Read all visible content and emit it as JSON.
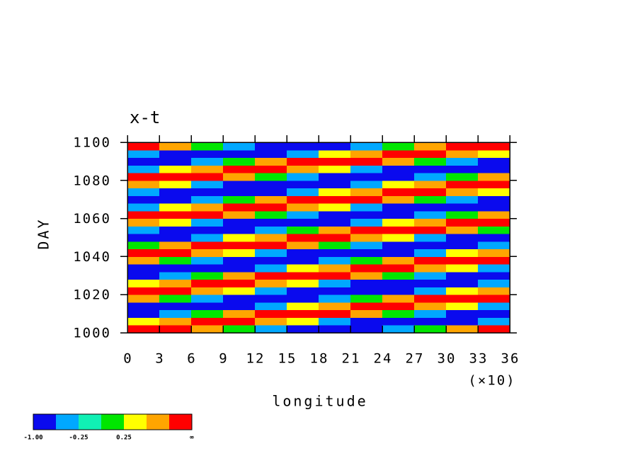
{
  "chart_data": {
    "type": "contour",
    "title": "x-t",
    "xlabel": "longitude",
    "xlabel_multiplier": "(×10)",
    "ylabel": "DAY",
    "x": [
      15,
      45,
      75,
      105,
      135,
      165,
      195,
      225,
      255,
      285,
      315,
      345
    ],
    "y": [
      1002,
      1006,
      1010,
      1014,
      1018,
      1022,
      1026,
      1030,
      1034,
      1038,
      1042,
      1046,
      1050,
      1054,
      1058,
      1062,
      1066,
      1070,
      1074,
      1078,
      1082,
      1086,
      1090,
      1094,
      1098
    ],
    "z": [
      [
        1,
        0.87,
        0.5,
        0,
        -0.5,
        -0.87,
        -1,
        -0.87,
        -0.5,
        0,
        0.5,
        0.87
      ],
      [
        0.26,
        0.71,
        0.97,
        0.97,
        0.71,
        0.26,
        -0.26,
        -0.71,
        -0.97,
        -0.97,
        -0.71,
        -0.26
      ],
      [
        -0.87,
        -0.5,
        0,
        0.5,
        0.87,
        1,
        0.87,
        0.5,
        0,
        -0.5,
        -0.87,
        -1
      ],
      [
        -0.71,
        -0.97,
        -0.97,
        -0.71,
        -0.26,
        0.26,
        0.71,
        0.97,
        0.97,
        0.71,
        0.26,
        -0.26
      ],
      [
        0.5,
        0,
        -0.5,
        -0.87,
        -1,
        -0.87,
        -0.5,
        0,
        0.5,
        0.87,
        1,
        0.87
      ],
      [
        0.97,
        0.97,
        0.71,
        0.26,
        -0.26,
        -0.71,
        -0.97,
        -0.97,
        -0.71,
        -0.26,
        0.26,
        0.71
      ],
      [
        0.26,
        0.71,
        0.97,
        0.97,
        0.71,
        0.26,
        -0.26,
        -0.71,
        -0.97,
        -0.97,
        -0.71,
        -0.26
      ],
      [
        -0.87,
        -0.5,
        0,
        0.5,
        0.87,
        1,
        0.87,
        0.5,
        0,
        -0.5,
        -0.87,
        -1
      ],
      [
        -0.71,
        -0.97,
        -0.97,
        -0.71,
        -0.26,
        0.26,
        0.71,
        0.97,
        0.97,
        0.71,
        0.26,
        -0.26
      ],
      [
        0.5,
        0,
        -0.5,
        -0.87,
        -1,
        -0.87,
        -0.5,
        0,
        0.5,
        0.87,
        1,
        0.87
      ],
      [
        0.97,
        0.97,
        0.71,
        0.26,
        -0.26,
        -0.71,
        -0.97,
        -0.97,
        -0.71,
        -0.26,
        0.26,
        0.71
      ],
      [
        0,
        0.5,
        0.87,
        1,
        0.87,
        0.5,
        0,
        -0.5,
        -0.87,
        -1,
        -0.87,
        -0.5
      ],
      [
        -0.97,
        -0.71,
        -0.26,
        0.26,
        0.71,
        0.97,
        0.97,
        0.71,
        0.26,
        -0.26,
        -0.71,
        -0.97
      ],
      [
        -0.5,
        -0.87,
        -1,
        -0.87,
        -0.5,
        0,
        0.5,
        0.87,
        1,
        0.87,
        0.5,
        0
      ],
      [
        0.71,
        0.26,
        -0.26,
        -0.71,
        -0.97,
        -0.97,
        -0.71,
        -0.26,
        0.26,
        0.71,
        0.97,
        0.97
      ],
      [
        0.87,
        1,
        0.87,
        0.5,
        0,
        -0.5,
        -0.87,
        -1,
        -0.87,
        -0.5,
        0,
        0.5
      ],
      [
        -0.26,
        0.26,
        0.71,
        0.97,
        0.97,
        0.71,
        0.26,
        -0.26,
        -0.71,
        -0.97,
        -0.97,
        -0.71
      ],
      [
        -1,
        -0.87,
        -0.5,
        0,
        0.5,
        0.87,
        1,
        0.87,
        0.5,
        0,
        -0.5,
        -0.87
      ],
      [
        -0.26,
        -0.71,
        -0.97,
        -0.97,
        -0.71,
        -0.26,
        0.26,
        0.71,
        0.97,
        0.97,
        0.71,
        0.26
      ],
      [
        0.71,
        0.26,
        -0.26,
        -0.71,
        -0.97,
        -0.97,
        -0.71,
        -0.26,
        0.26,
        0.71,
        0.97,
        0.97
      ],
      [
        0.87,
        1,
        0.87,
        0.5,
        0,
        -0.5,
        -0.87,
        -1,
        -0.87,
        -0.5,
        0,
        0.5
      ],
      [
        -0.26,
        0.26,
        0.71,
        0.97,
        0.97,
        0.71,
        0.26,
        -0.26,
        -0.71,
        -0.97,
        -0.97,
        -0.71
      ],
      [
        -1,
        -0.87,
        -0.5,
        0,
        0.5,
        0.87,
        1,
        0.87,
        0.5,
        0,
        -0.5,
        -0.87
      ],
      [
        -0.26,
        -0.71,
        -0.97,
        -0.97,
        -0.71,
        -0.26,
        0.26,
        0.71,
        0.97,
        0.97,
        0.71,
        0.26
      ],
      [
        0.87,
        0.5,
        0,
        -0.5,
        -0.87,
        -1,
        -0.87,
        -0.5,
        0,
        0.5,
        0.87,
        1
      ]
    ],
    "levels": [
      -1,
      -0.5,
      -0.25,
      0,
      0.25,
      0.5,
      0.75
    ],
    "colors": [
      "#0a0aee",
      "#00a8ff",
      "#10f0b4",
      "#00e600",
      "#ffff00",
      "#ffa500",
      "#ff0000"
    ],
    "colorbar_ticks": [
      {
        "value": -1,
        "label": "-1.00"
      },
      {
        "value": -0.25,
        "label": "-0.25"
      },
      {
        "value": 0.25,
        "label": "0.25"
      }
    ],
    "colorbar_top_label": "∞",
    "xlim": [
      0,
      360
    ],
    "xticks": [
      0,
      {
        "value": 30,
        "label": "3"
      },
      {
        "value": 60,
        "label": "6"
      },
      {
        "value": 90,
        "label": "9"
      },
      {
        "value": 120,
        "label": "12"
      },
      {
        "value": 150,
        "label": "15"
      },
      {
        "value": 180,
        "label": "18"
      },
      {
        "value": 210,
        "label": "21"
      },
      {
        "value": 240,
        "label": "24"
      },
      {
        "value": 270,
        "label": "27"
      },
      {
        "value": 300,
        "label": "30"
      },
      {
        "value": 330,
        "label": "33"
      },
      {
        "value": 360,
        "label": "36"
      }
    ],
    "ylim": [
      1000,
      1100
    ],
    "yticks": [
      1000,
      1020,
      1040,
      1060,
      1080,
      1100
    ]
  }
}
